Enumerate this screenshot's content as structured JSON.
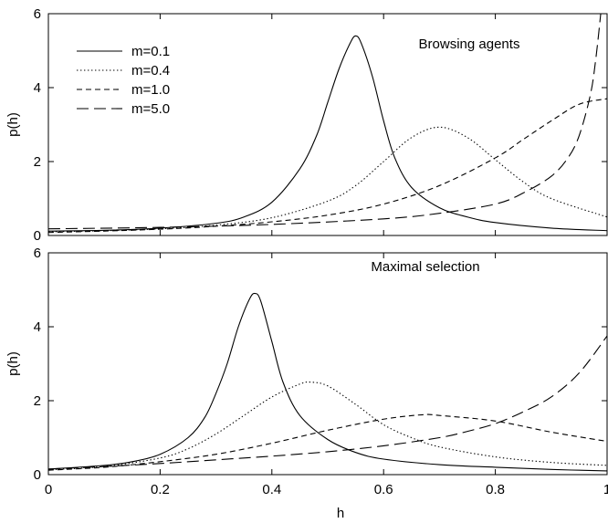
{
  "chart_data": [
    {
      "type": "line",
      "annotation": "Browsing agents",
      "xlabel": "",
      "ylabel": "p(h)",
      "xlim": [
        0,
        1
      ],
      "ylim": [
        0,
        6
      ],
      "xticks": [],
      "yticks": [
        "0",
        "2",
        "4",
        "6"
      ],
      "legend": {
        "placement": "top-left"
      },
      "series": [
        {
          "name": "m=0.1",
          "dash": "solid",
          "x": [
            0,
            0.1,
            0.2,
            0.3,
            0.35,
            0.4,
            0.45,
            0.48,
            0.5,
            0.52,
            0.54,
            0.55,
            0.56,
            0.58,
            0.6,
            0.62,
            0.65,
            0.7,
            0.75,
            0.8,
            0.9,
            1.0
          ],
          "y": [
            0.12,
            0.14,
            0.2,
            0.33,
            0.5,
            0.9,
            1.8,
            2.7,
            3.6,
            4.5,
            5.2,
            5.4,
            5.2,
            4.3,
            3.1,
            2.1,
            1.3,
            0.75,
            0.5,
            0.35,
            0.2,
            0.13
          ]
        },
        {
          "name": "m=0.4",
          "dash": "dotted",
          "x": [
            0,
            0.1,
            0.2,
            0.3,
            0.4,
            0.5,
            0.55,
            0.6,
            0.65,
            0.7,
            0.75,
            0.8,
            0.85,
            0.9,
            1.0
          ],
          "y": [
            0.1,
            0.13,
            0.18,
            0.28,
            0.48,
            0.93,
            1.35,
            2.0,
            2.65,
            2.93,
            2.65,
            2.05,
            1.45,
            1.0,
            0.5
          ]
        },
        {
          "name": "m=1.0",
          "dash": "dashed",
          "x": [
            0,
            0.1,
            0.2,
            0.3,
            0.4,
            0.5,
            0.6,
            0.7,
            0.8,
            0.85,
            0.9,
            0.95,
            1.0
          ],
          "y": [
            0.08,
            0.12,
            0.17,
            0.25,
            0.37,
            0.55,
            0.85,
            1.35,
            2.1,
            2.6,
            3.1,
            3.55,
            3.7
          ]
        },
        {
          "name": "m=5.0",
          "dash": "long-dashed",
          "x": [
            0,
            0.2,
            0.4,
            0.6,
            0.7,
            0.8,
            0.85,
            0.9,
            0.93,
            0.95,
            0.97,
            0.98,
            0.99
          ],
          "y": [
            0.18,
            0.22,
            0.3,
            0.45,
            0.6,
            0.85,
            1.15,
            1.6,
            2.1,
            2.7,
            3.8,
            4.8,
            6.2
          ]
        }
      ]
    },
    {
      "type": "line",
      "annotation": "Maximal selection",
      "xlabel": "h",
      "ylabel": "p(h)",
      "xlim": [
        0,
        1
      ],
      "ylim": [
        0,
        6
      ],
      "xticks": [
        "0",
        "0.2",
        "0.4",
        "0.6",
        "0.8",
        "1"
      ],
      "yticks": [
        "0",
        "2",
        "4",
        "6"
      ],
      "series": [
        {
          "name": "m=0.1",
          "dash": "solid",
          "x": [
            0,
            0.1,
            0.15,
            0.2,
            0.25,
            0.28,
            0.3,
            0.32,
            0.34,
            0.36,
            0.37,
            0.38,
            0.4,
            0.42,
            0.45,
            0.5,
            0.55,
            0.6,
            0.7,
            0.8,
            0.9,
            1.0
          ],
          "y": [
            0.15,
            0.25,
            0.35,
            0.55,
            1.0,
            1.55,
            2.2,
            3.0,
            4.0,
            4.75,
            4.9,
            4.7,
            3.6,
            2.5,
            1.6,
            0.95,
            0.6,
            0.42,
            0.27,
            0.2,
            0.14,
            0.1
          ]
        },
        {
          "name": "m=0.4",
          "dash": "dotted",
          "x": [
            0,
            0.1,
            0.2,
            0.25,
            0.3,
            0.35,
            0.4,
            0.45,
            0.47,
            0.5,
            0.55,
            0.6,
            0.65,
            0.7,
            0.8,
            0.9,
            1.0
          ],
          "y": [
            0.13,
            0.22,
            0.45,
            0.7,
            1.1,
            1.6,
            2.1,
            2.45,
            2.5,
            2.4,
            1.9,
            1.35,
            1.0,
            0.75,
            0.48,
            0.33,
            0.25
          ]
        },
        {
          "name": "m=1.0",
          "dash": "dashed",
          "x": [
            0,
            0.1,
            0.2,
            0.3,
            0.4,
            0.5,
            0.6,
            0.67,
            0.7,
            0.8,
            0.9,
            1.0
          ],
          "y": [
            0.12,
            0.2,
            0.35,
            0.55,
            0.85,
            1.2,
            1.5,
            1.62,
            1.6,
            1.45,
            1.15,
            0.9
          ]
        },
        {
          "name": "m=5.0",
          "dash": "long-dashed",
          "x": [
            0,
            0.1,
            0.2,
            0.3,
            0.4,
            0.5,
            0.6,
            0.7,
            0.75,
            0.8,
            0.85,
            0.9,
            0.95,
            1.0
          ],
          "y": [
            0.15,
            0.22,
            0.3,
            0.4,
            0.5,
            0.62,
            0.78,
            1.0,
            1.17,
            1.38,
            1.7,
            2.1,
            2.75,
            3.75
          ]
        }
      ]
    }
  ]
}
